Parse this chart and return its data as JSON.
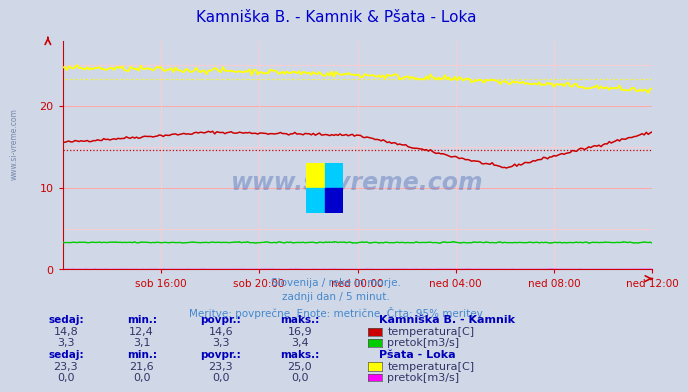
{
  "title": "Kamniška B. - Kamnik & Pšata - Loka",
  "title_color": "#0000cc",
  "bg_color": "#d0d8e8",
  "plot_bg_color": "#d0d8e8",
  "xlabel_ticks": [
    "sob 16:00",
    "sob 20:00",
    "ned 00:00",
    "ned 04:00",
    "ned 08:00",
    "ned 12:00"
  ],
  "ylim": [
    0,
    28
  ],
  "yticks": [
    0,
    10,
    20
  ],
  "grid_color_h": "#ffaaaa",
  "grid_color_v": "#ffcccc",
  "watermark_text": "www.si-vreme.com",
  "subtitle_lines": [
    "Slovenija / reke in morje.",
    "zadnji dan / 5 minut.",
    "Meritve: povprečne  Enote: metrične  Črta: 95% meritev"
  ],
  "subtitle_color": "#4488cc",
  "label_color": "#0000bb",
  "axis_color": "#cc0000",
  "kamnik_temp_color": "#cc0000",
  "kamnik_flow_color": "#00cc00",
  "loka_temp_color": "#ffff00",
  "loka_flow_color": "#ff00ff",
  "kamnik_temp_avg": 14.6,
  "kamnik_temp_min": 12.4,
  "kamnik_temp_max": 16.9,
  "kamnik_flow_avg": 3.3,
  "kamnik_flow_min": 3.1,
  "kamnik_flow_max": 3.4,
  "loka_temp_avg": 23.3,
  "loka_temp_min": 21.6,
  "loka_temp_max": 25.0,
  "loka_flow_avg": 0.0,
  "loka_flow_min": 0.0,
  "loka_flow_max": 0.0,
  "n_points": 288,
  "table_text_color": "#333366",
  "col_headers": [
    "sedaj:",
    "min.:",
    "povpr.:",
    "maks.:"
  ],
  "kamnik_vals_temp": [
    "14,8",
    "12,4",
    "14,6",
    "16,9"
  ],
  "kamnik_vals_flow": [
    "3,3",
    "3,1",
    "3,3",
    "3,4"
  ],
  "loka_vals_temp": [
    "23,3",
    "21,6",
    "23,3",
    "25,0"
  ],
  "loka_vals_flow": [
    "0,0",
    "0,0",
    "0,0",
    "0,0"
  ],
  "station1_name": "Kamniška B. - Kamnik",
  "station2_name": "Pšata - Loka",
  "temp_label": "temperatura[C]",
  "flow_label": "pretok[m3/s]",
  "left_watermark": "www.si-vreme.com"
}
